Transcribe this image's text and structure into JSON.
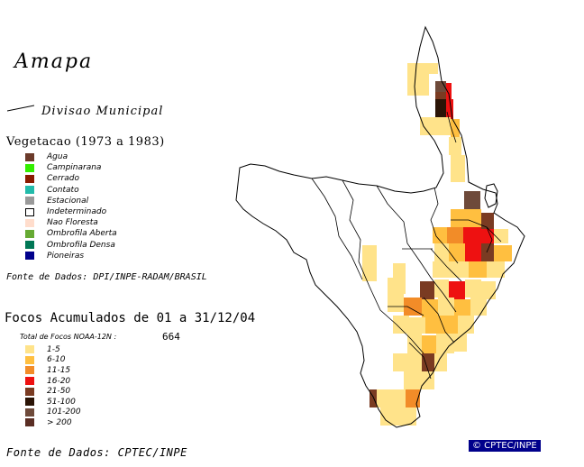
{
  "title": "Amapa",
  "division_label": "Divisao Municipal",
  "vegetation": {
    "title": "Vegetacao (1973 a 1983)",
    "items": [
      {
        "label": "Agua",
        "color": "#6b3a2a"
      },
      {
        "label": "Campinarana",
        "color": "#33ee00"
      },
      {
        "label": "Cerrado",
        "color": "#8b1a00"
      },
      {
        "label": "Contato",
        "color": "#22bbaa"
      },
      {
        "label": "Estacional",
        "color": "#999999"
      },
      {
        "label": "Indeterminado",
        "color": "#ffffff"
      },
      {
        "label": "Nao Floresta",
        "color": "#ffddcc"
      },
      {
        "label": "Ombrofila Aberta",
        "color": "#66aa33"
      },
      {
        "label": "Ombrofila Densa",
        "color": "#007755"
      },
      {
        "label": "Pioneiras",
        "color": "#00008b"
      }
    ],
    "source": "Fonte de Dados: DPI/INPE-RADAM/BRASIL"
  },
  "focos": {
    "title": "Focos Acumulados de 01 a 31/12/04",
    "total_label": "Total de Focos NOAA-12N :",
    "total_value": "664",
    "items": [
      {
        "label": "1-5",
        "color": "#ffe38a"
      },
      {
        "label": "6-10",
        "color": "#ffbf40"
      },
      {
        "label": "11-15",
        "color": "#f28c28"
      },
      {
        "label": "16-20",
        "color": "#ee1111"
      },
      {
        "label": "21-50",
        "color": "#7a3b22"
      },
      {
        "label": "51-100",
        "color": "#2b1406"
      },
      {
        "label": "101-200",
        "color": "#6e4a3a"
      },
      {
        "label": "> 200",
        "color": "#5a2e24"
      }
    ],
    "source": "Fonte de Dados: CPTEC/INPE"
  },
  "credit": "© CPTEC/INPE"
}
